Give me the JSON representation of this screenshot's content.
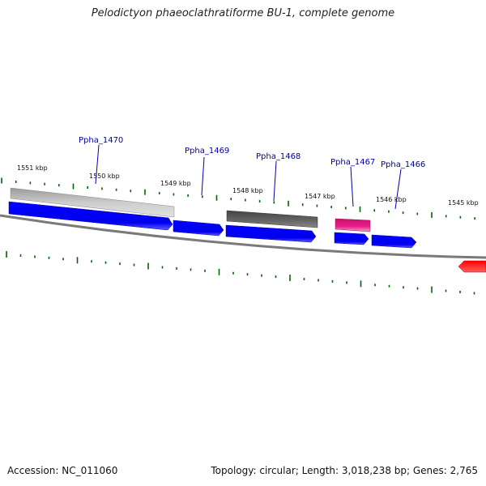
{
  "title": "Pelodictyon phaeoclathratiforme BU-1, complete genome",
  "footer": {
    "accession": "Accession: NC_011060",
    "summary": "Topology: circular; Length: 3,018,238 bp; Genes: 2,765"
  },
  "kbp_labels": [
    "1551 kbp",
    "1550 kbp",
    "1549 kbp",
    "1548 kbp",
    "1547 kbp",
    "1546 kbp",
    "1545 kbp"
  ],
  "genes": [
    {
      "name": "Ppha_1470",
      "strand": "minus",
      "color": "#0000ff"
    },
    {
      "name": "Ppha_1469",
      "strand": "minus",
      "color": "#0000ff"
    },
    {
      "name": "Ppha_1468",
      "strand": "minus",
      "color": "#0000ff"
    },
    {
      "name": "Ppha_1467",
      "strand": "minus",
      "color": "#0000ff"
    },
    {
      "name": "Ppha_1466",
      "strand": "minus",
      "color": "#0000ff"
    }
  ],
  "colors": {
    "backbone": "#777777",
    "tick": "#006600",
    "cds": "#0000ff",
    "gene_gray_light": "#bbbbbb",
    "gene_gray_dark": "#555555",
    "gene_pink": "#e8208a",
    "gene_red": "#ff0000",
    "label": "#0000aa"
  }
}
